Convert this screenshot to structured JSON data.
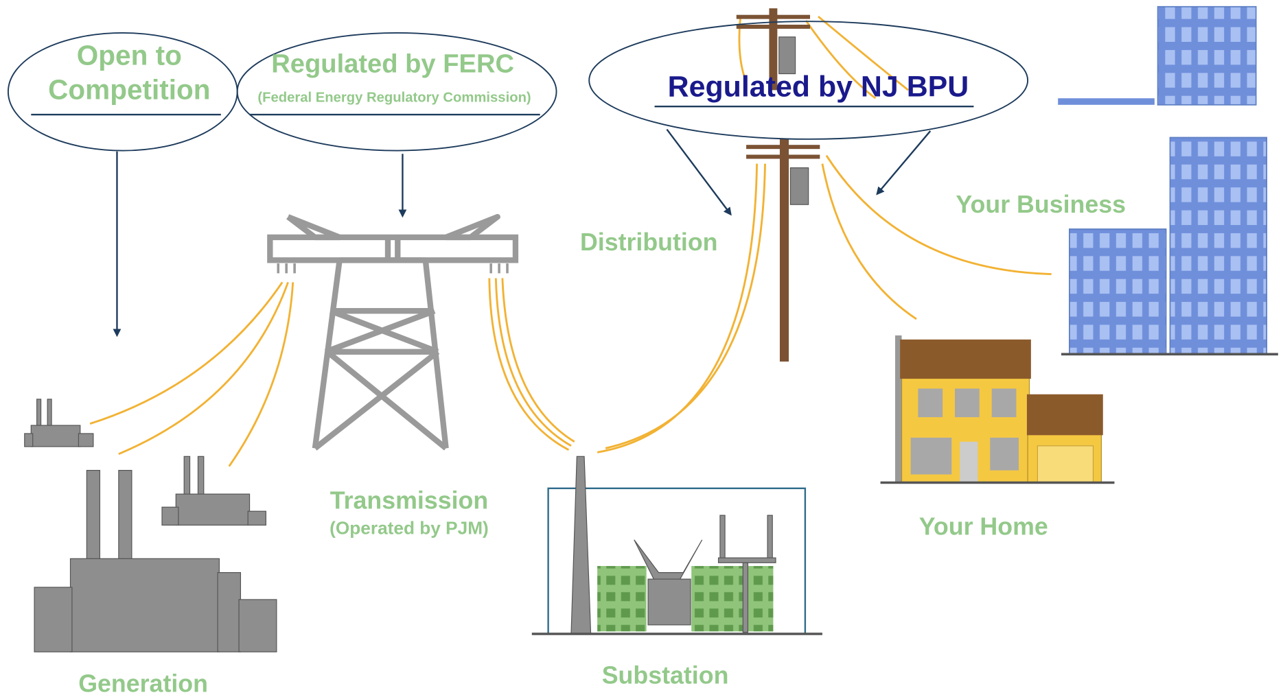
{
  "callouts": {
    "competition": {
      "lines": [
        "Open to",
        "Competition"
      ]
    },
    "ferc": {
      "title": "Regulated by FERC",
      "subtitle": "(Federal Energy Regulatory Commission)"
    },
    "bpu": {
      "title": "Regulated by NJ BPU"
    }
  },
  "labels": {
    "generation": "Generation",
    "transmission": "Transmission",
    "transmission_note": "(Operated by PJM)",
    "substation": "Substation",
    "distribution": "Distribution",
    "home": "Your Home",
    "business": "Your Business"
  }
}
